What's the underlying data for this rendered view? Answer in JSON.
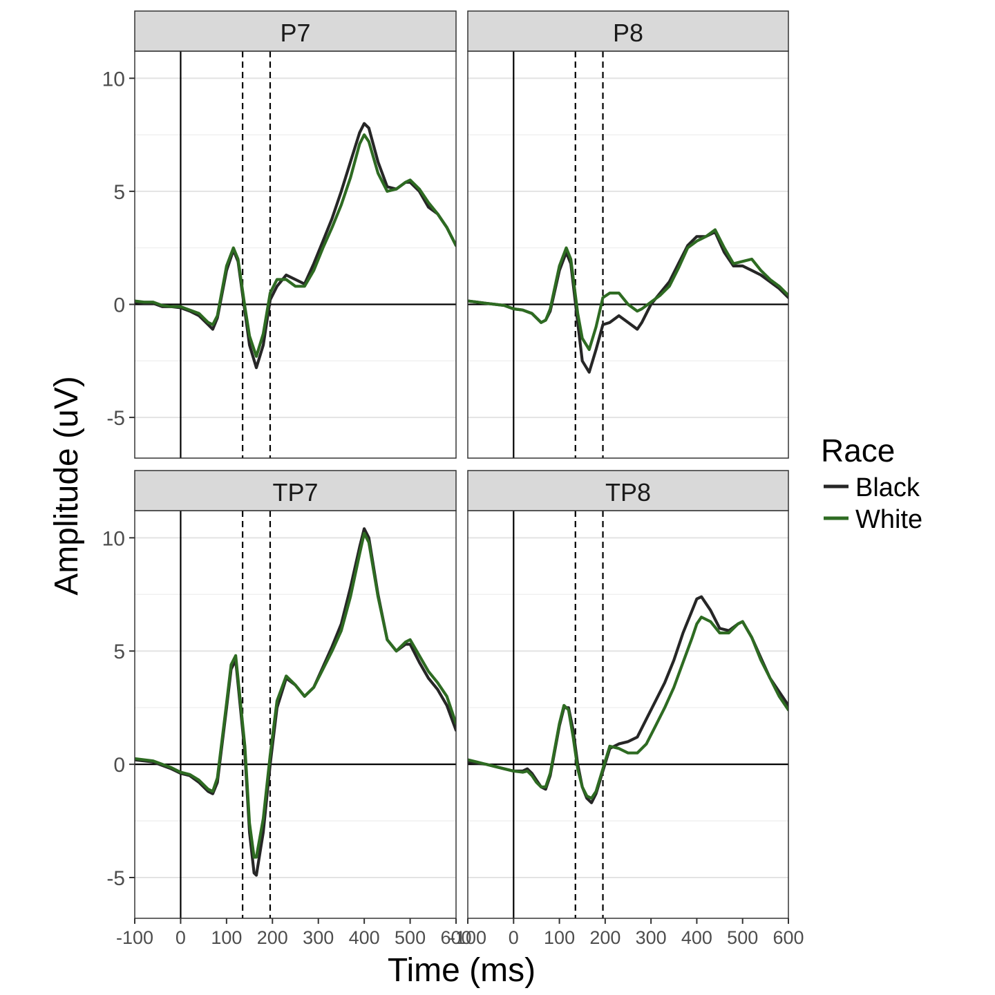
{
  "chart_data": {
    "type": "line",
    "xlabel": "Time (ms)",
    "ylabel": "Amplitude (uV)",
    "xlim": [
      -100,
      600
    ],
    "ylim": [
      -6.8,
      11.2
    ],
    "xticks": [
      -100,
      0,
      100,
      200,
      300,
      400,
      500,
      600
    ],
    "xtick_labels": [
      "-100",
      "0",
      "100",
      "200",
      "300",
      "400",
      "500",
      "600"
    ],
    "yticks": [
      -5,
      0,
      5,
      10
    ],
    "ytick_labels": [
      "-5",
      "0",
      "5",
      "10"
    ],
    "y_minor_gridlines": [
      -2.5,
      2.5,
      7.5
    ],
    "grid": true,
    "reference_lines": {
      "vertical_solid": 0,
      "horizontal_solid": 0,
      "vertical_dashed": [
        135,
        195
      ]
    },
    "legend": {
      "title": "Race",
      "position": "right",
      "entries": [
        {
          "name": "Black",
          "color": "#262626"
        },
        {
          "name": "White",
          "color": "#2e6b22"
        }
      ]
    },
    "panels": [
      {
        "label": "P7",
        "series": [
          {
            "name": "Black",
            "x": [
              -100,
              -80,
              -60,
              -40,
              -20,
              0,
              20,
              40,
              60,
              70,
              80,
              100,
              115,
              125,
              140,
              150,
              165,
              180,
              195,
              210,
              230,
              250,
              270,
              290,
              310,
              330,
              350,
              370,
              390,
              400,
              410,
              430,
              450,
              470,
              490,
              500,
              520,
              540,
              560,
              580,
              600
            ],
            "y": [
              0.1,
              0.05,
              0.05,
              -0.1,
              -0.1,
              -0.15,
              -0.3,
              -0.5,
              -0.9,
              -1.1,
              -0.6,
              1.5,
              2.4,
              1.9,
              -0.3,
              -1.8,
              -2.8,
              -1.8,
              0.2,
              0.8,
              1.3,
              1.1,
              0.9,
              1.8,
              2.8,
              3.8,
              5.0,
              6.3,
              7.6,
              8.0,
              7.8,
              6.3,
              5.2,
              5.1,
              5.4,
              5.4,
              5.0,
              4.3,
              4.0,
              3.4,
              2.6
            ]
          },
          {
            "name": "White",
            "x": [
              -100,
              -80,
              -60,
              -40,
              -20,
              0,
              20,
              40,
              60,
              70,
              80,
              100,
              115,
              125,
              140,
              150,
              165,
              180,
              195,
              210,
              230,
              250,
              270,
              290,
              310,
              330,
              350,
              370,
              390,
              400,
              410,
              430,
              450,
              470,
              490,
              500,
              520,
              540,
              560,
              580,
              600
            ],
            "y": [
              0.15,
              0.1,
              0.1,
              -0.05,
              -0.1,
              -0.1,
              -0.25,
              -0.4,
              -0.8,
              -0.9,
              -0.5,
              1.7,
              2.5,
              2.0,
              -0.1,
              -1.4,
              -2.3,
              -1.3,
              0.5,
              1.1,
              1.1,
              0.8,
              0.8,
              1.5,
              2.5,
              3.4,
              4.4,
              5.6,
              7.1,
              7.5,
              7.2,
              5.8,
              5.0,
              5.1,
              5.4,
              5.5,
              5.1,
              4.5,
              4.0,
              3.4,
              2.6
            ]
          }
        ]
      },
      {
        "label": "P8",
        "series": [
          {
            "name": "Black",
            "x": [
              -100,
              -80,
              -60,
              -40,
              -20,
              0,
              20,
              40,
              60,
              70,
              80,
              100,
              115,
              125,
              140,
              150,
              165,
              180,
              195,
              210,
              230,
              250,
              270,
              280,
              300,
              320,
              340,
              360,
              380,
              400,
              420,
              440,
              460,
              480,
              500,
              520,
              540,
              560,
              580,
              600
            ],
            "y": [
              0.15,
              0.1,
              0.05,
              0.0,
              -0.05,
              -0.2,
              -0.25,
              -0.4,
              -0.8,
              -0.7,
              -0.3,
              1.5,
              2.3,
              1.8,
              -0.8,
              -2.5,
              -3.0,
              -2.0,
              -0.9,
              -0.8,
              -0.5,
              -0.8,
              -1.1,
              -0.8,
              0.0,
              0.5,
              1.0,
              1.8,
              2.6,
              3.0,
              3.0,
              3.2,
              2.3,
              1.7,
              1.7,
              1.5,
              1.3,
              1.0,
              0.7,
              0.3
            ]
          },
          {
            "name": "White",
            "x": [
              -100,
              -80,
              -60,
              -40,
              -20,
              0,
              20,
              40,
              60,
              70,
              80,
              100,
              115,
              125,
              140,
              150,
              165,
              180,
              195,
              210,
              230,
              250,
              270,
              280,
              300,
              320,
              340,
              360,
              380,
              400,
              420,
              440,
              460,
              480,
              500,
              520,
              540,
              560,
              580,
              600
            ],
            "y": [
              0.15,
              0.1,
              0.05,
              0.0,
              -0.05,
              -0.2,
              -0.25,
              -0.4,
              -0.8,
              -0.7,
              -0.2,
              1.7,
              2.5,
              2.0,
              -0.4,
              -1.5,
              -2.0,
              -1.0,
              0.3,
              0.5,
              0.5,
              0.0,
              -0.3,
              -0.2,
              0.1,
              0.4,
              0.8,
              1.6,
              2.5,
              2.8,
              3.0,
              3.3,
              2.5,
              1.8,
              1.9,
              2.0,
              1.5,
              1.1,
              0.8,
              0.4
            ]
          }
        ]
      },
      {
        "label": "TP7",
        "series": [
          {
            "name": "Black",
            "x": [
              -100,
              -80,
              -60,
              -40,
              -20,
              0,
              20,
              40,
              60,
              70,
              80,
              100,
              110,
              120,
              140,
              150,
              160,
              165,
              180,
              195,
              210,
              230,
              250,
              270,
              290,
              310,
              330,
              350,
              370,
              390,
              400,
              410,
              430,
              450,
              470,
              490,
              500,
              520,
              540,
              560,
              580,
              600
            ],
            "y": [
              0.2,
              0.15,
              0.1,
              -0.05,
              -0.2,
              -0.4,
              -0.5,
              -0.8,
              -1.2,
              -1.3,
              -0.8,
              2.5,
              4.2,
              4.6,
              0.5,
              -3.0,
              -4.8,
              -4.9,
              -3.0,
              0.0,
              2.5,
              3.8,
              3.5,
              3.0,
              3.4,
              4.3,
              5.2,
              6.2,
              7.8,
              9.6,
              10.4,
              10.0,
              7.5,
              5.5,
              5.0,
              5.3,
              5.3,
              4.5,
              3.8,
              3.3,
              2.6,
              1.5
            ]
          },
          {
            "name": "White",
            "x": [
              -100,
              -80,
              -60,
              -40,
              -20,
              0,
              20,
              40,
              60,
              70,
              80,
              100,
              110,
              120,
              140,
              150,
              160,
              165,
              180,
              195,
              210,
              230,
              250,
              270,
              290,
              310,
              330,
              350,
              370,
              390,
              400,
              410,
              430,
              450,
              470,
              490,
              500,
              520,
              540,
              560,
              580,
              600
            ],
            "y": [
              0.25,
              0.2,
              0.15,
              0.0,
              -0.15,
              -0.35,
              -0.45,
              -0.7,
              -1.1,
              -1.2,
              -0.6,
              2.7,
              4.4,
              4.8,
              0.8,
              -2.6,
              -4.1,
              -4.1,
              -2.4,
              0.4,
              2.8,
              3.9,
              3.5,
              3.0,
              3.4,
              4.2,
              5.0,
              5.9,
              7.4,
              9.3,
              10.2,
              9.8,
              7.4,
              5.5,
              5.0,
              5.4,
              5.5,
              4.8,
              4.1,
              3.6,
              3.0,
              1.8
            ]
          }
        ]
      },
      {
        "label": "TP8",
        "series": [
          {
            "name": "Black",
            "x": [
              -100,
              -80,
              -60,
              -40,
              -20,
              0,
              20,
              30,
              40,
              50,
              60,
              70,
              80,
              100,
              110,
              120,
              130,
              140,
              150,
              160,
              170,
              180,
              195,
              210,
              230,
              250,
              270,
              290,
              310,
              330,
              350,
              370,
              390,
              400,
              410,
              430,
              450,
              470,
              490,
              500,
              520,
              540,
              560,
              580,
              600
            ],
            "y": [
              0.1,
              0.05,
              0.0,
              -0.1,
              -0.2,
              -0.3,
              -0.3,
              -0.2,
              -0.4,
              -0.7,
              -1.0,
              -1.1,
              -0.5,
              1.7,
              2.5,
              2.5,
              1.5,
              0.0,
              -1.0,
              -1.5,
              -1.7,
              -1.3,
              -0.3,
              0.7,
              0.9,
              1.0,
              1.2,
              2.0,
              2.8,
              3.6,
              4.6,
              5.8,
              6.8,
              7.3,
              7.4,
              6.8,
              6.0,
              5.9,
              6.2,
              6.3,
              5.6,
              4.7,
              3.8,
              3.2,
              2.6
            ]
          },
          {
            "name": "White",
            "x": [
              -100,
              -80,
              -60,
              -40,
              -20,
              0,
              20,
              30,
              40,
              50,
              60,
              70,
              80,
              100,
              110,
              120,
              130,
              140,
              150,
              160,
              170,
              180,
              195,
              210,
              230,
              250,
              270,
              290,
              310,
              330,
              350,
              370,
              390,
              400,
              410,
              430,
              450,
              470,
              490,
              500,
              520,
              540,
              560,
              580,
              600
            ],
            "y": [
              0.2,
              0.1,
              0.0,
              -0.1,
              -0.2,
              -0.3,
              -0.35,
              -0.3,
              -0.5,
              -0.8,
              -1.0,
              -1.0,
              -0.4,
              1.8,
              2.6,
              2.4,
              1.2,
              -0.2,
              -1.0,
              -1.4,
              -1.5,
              -1.2,
              -0.2,
              0.8,
              0.7,
              0.5,
              0.5,
              0.9,
              1.7,
              2.5,
              3.4,
              4.5,
              5.6,
              6.2,
              6.5,
              6.3,
              5.8,
              5.8,
              6.2,
              6.3,
              5.6,
              4.6,
              3.8,
              3.0,
              2.4
            ]
          }
        ]
      }
    ]
  }
}
